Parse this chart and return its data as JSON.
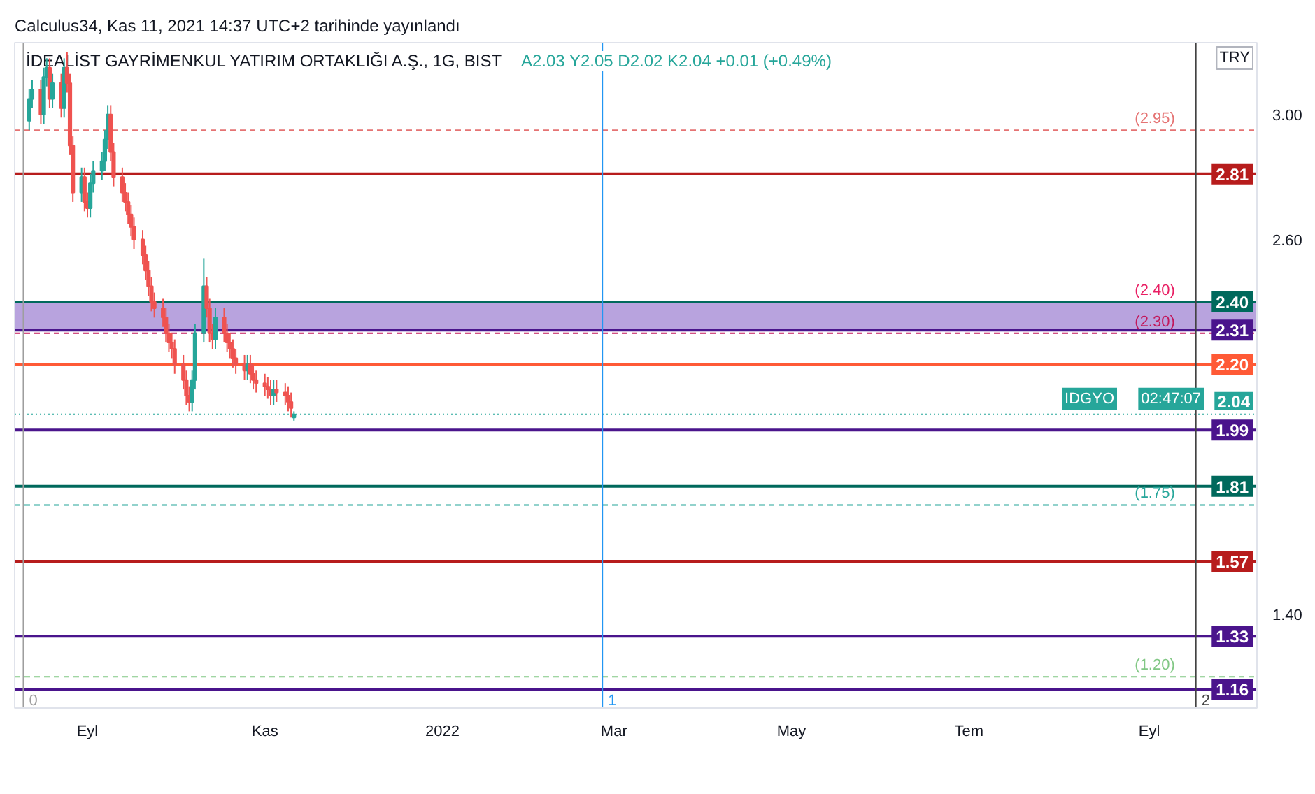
{
  "chart_data": {
    "type": "candlestick",
    "title": "İDEALİST GAYRİMENKUL YATIRIM ORTAKLIĞI A.Ş., 1G, BIST",
    "subtitle": "A2.03  Y2.05  D2.02  K2.04  +0.01 (+0.49%)",
    "annotations": [
      "Calculus34, Kas 11, 2021 14:37 UTC+2 tarihinde yayınlandı",
      "TRY",
      "02:47:07",
      "2.04"
    ],
    "x": [
      "2021-08-12",
      "2021-08-13",
      "2021-08-16",
      "2021-08-17",
      "2021-08-18",
      "2021-08-19",
      "2021-08-20",
      "2021-08-23",
      "2021-08-24",
      "2021-08-25",
      "2021-08-26",
      "2021-08-27",
      "2021-08-30",
      "2021-08-31",
      "2021-09-01",
      "2021-09-02",
      "2021-09-03",
      "2021-09-06",
      "2021-09-07",
      "2021-09-08",
      "2021-09-09",
      "2021-09-10",
      "2021-09-13",
      "2021-09-14",
      "2021-09-15",
      "2021-09-16",
      "2021-09-17",
      "2021-09-20",
      "2021-09-21",
      "2021-09-22",
      "2021-09-23",
      "2021-09-24",
      "2021-09-27",
      "2021-09-28",
      "2021-09-29",
      "2021-09-30",
      "2021-10-01",
      "2021-10-04",
      "2021-10-05",
      "2021-10-06",
      "2021-10-07",
      "2021-10-08",
      "2021-10-11",
      "2021-10-12",
      "2021-10-13",
      "2021-10-14",
      "2021-10-15",
      "2021-10-18",
      "2021-10-19",
      "2021-10-20",
      "2021-10-21",
      "2021-10-22",
      "2021-10-25",
      "2021-10-26",
      "2021-10-27",
      "2021-10-28",
      "2021-10-29",
      "2021-11-01",
      "2021-11-02",
      "2021-11-03",
      "2021-11-04",
      "2021-11-05",
      "2021-11-08",
      "2021-11-09",
      "2021-11-10",
      "2021-11-11"
    ],
    "ohlc": [
      [
        2.98,
        3.08,
        2.95,
        3.05
      ],
      [
        3.05,
        3.11,
        3.02,
        3.08
      ],
      [
        3.08,
        3.11,
        2.97,
        3.0
      ],
      [
        3.0,
        3.15,
        2.97,
        3.12
      ],
      [
        3.12,
        3.18,
        3.09,
        3.15
      ],
      [
        3.15,
        3.18,
        3.02,
        3.05
      ],
      [
        3.05,
        3.13,
        3.02,
        3.1
      ],
      [
        3.1,
        3.13,
        2.99,
        3.02
      ],
      [
        3.02,
        3.18,
        2.99,
        3.15
      ],
      [
        3.15,
        3.2,
        3.07,
        3.1
      ],
      [
        3.1,
        3.13,
        2.87,
        2.9
      ],
      [
        2.9,
        2.93,
        2.72,
        2.75
      ],
      [
        2.75,
        2.83,
        2.72,
        2.8
      ],
      [
        2.8,
        2.83,
        2.69,
        2.72
      ],
      [
        2.72,
        2.75,
        2.67,
        2.7
      ],
      [
        2.7,
        2.81,
        2.67,
        2.78
      ],
      [
        2.78,
        2.85,
        2.75,
        2.82
      ],
      [
        2.82,
        2.88,
        2.79,
        2.85
      ],
      [
        2.85,
        2.95,
        2.82,
        2.92
      ],
      [
        2.92,
        3.03,
        2.89,
        3.0
      ],
      [
        3.0,
        3.03,
        2.85,
        2.88
      ],
      [
        2.88,
        2.91,
        2.77,
        2.8
      ],
      [
        2.8,
        2.83,
        2.72,
        2.75
      ],
      [
        2.75,
        2.78,
        2.69,
        2.72
      ],
      [
        2.72,
        2.75,
        2.65,
        2.68
      ],
      [
        2.68,
        2.71,
        2.61,
        2.64
      ],
      [
        2.64,
        2.67,
        2.57,
        2.6
      ],
      [
        2.6,
        2.63,
        2.52,
        2.55
      ],
      [
        2.55,
        2.58,
        2.47,
        2.5
      ],
      [
        2.5,
        2.53,
        2.42,
        2.45
      ],
      [
        2.45,
        2.48,
        2.37,
        2.4
      ],
      [
        2.4,
        2.43,
        2.35,
        2.38
      ],
      [
        2.38,
        2.41,
        2.32,
        2.35
      ],
      [
        2.35,
        2.38,
        2.27,
        2.3
      ],
      [
        2.3,
        2.33,
        2.24,
        2.27
      ],
      [
        2.27,
        2.3,
        2.22,
        2.25
      ],
      [
        2.25,
        2.28,
        2.17,
        2.2
      ],
      [
        2.2,
        2.23,
        2.12,
        2.15
      ],
      [
        2.15,
        2.18,
        2.07,
        2.1
      ],
      [
        2.1,
        2.13,
        2.05,
        2.08
      ],
      [
        2.08,
        2.18,
        2.05,
        2.15
      ],
      [
        2.15,
        2.33,
        2.12,
        2.3
      ],
      [
        2.3,
        2.54,
        2.27,
        2.45
      ],
      [
        2.45,
        2.48,
        2.35,
        2.38
      ],
      [
        2.38,
        2.41,
        2.27,
        2.3
      ],
      [
        2.3,
        2.33,
        2.25,
        2.28
      ],
      [
        2.28,
        2.38,
        2.25,
        2.35
      ],
      [
        2.35,
        2.38,
        2.27,
        2.3
      ],
      [
        2.3,
        2.33,
        2.24,
        2.27
      ],
      [
        2.27,
        2.3,
        2.22,
        2.25
      ],
      [
        2.25,
        2.28,
        2.19,
        2.22
      ],
      [
        2.22,
        2.25,
        2.17,
        2.2
      ],
      [
        2.2,
        2.23,
        2.15,
        2.18
      ],
      [
        2.18,
        2.23,
        2.15,
        2.2
      ],
      [
        2.2,
        2.23,
        2.14,
        2.17
      ],
      [
        2.17,
        2.2,
        2.12,
        2.15
      ],
      [
        2.15,
        2.18,
        2.11,
        2.14
      ],
      [
        2.14,
        2.17,
        2.1,
        2.13
      ],
      [
        2.13,
        2.16,
        2.09,
        2.12
      ],
      [
        2.12,
        2.15,
        2.07,
        2.1
      ],
      [
        2.1,
        2.15,
        2.07,
        2.12
      ],
      [
        2.12,
        2.15,
        2.08,
        2.11
      ],
      [
        2.11,
        2.14,
        2.07,
        2.1
      ],
      [
        2.1,
        2.13,
        2.05,
        2.08
      ],
      [
        2.08,
        2.11,
        2.03,
        2.06
      ],
      [
        2.03,
        2.05,
        2.02,
        2.04
      ]
    ],
    "xlim": [
      "2021-08-07",
      "2022-10-08"
    ],
    "ylim": [
      1.1,
      3.23
    ],
    "xticks": [
      {
        "value": "2021-09-01",
        "label": "Eyl"
      },
      {
        "value": "2021-11-01",
        "label": "Kas"
      },
      {
        "value": "2022-01-01",
        "label": "2022"
      },
      {
        "value": "2022-03-01",
        "label": "Mar"
      },
      {
        "value": "2022-05-01",
        "label": "May"
      },
      {
        "value": "2022-07-01",
        "label": "Tem"
      },
      {
        "value": "2022-09-01",
        "label": "Eyl"
      }
    ],
    "yticks": [
      {
        "value": 1.4,
        "label": "1.40"
      },
      {
        "value": 2.6,
        "label": "2.60"
      },
      {
        "value": 3.0,
        "label": "3.00"
      }
    ],
    "grid": false,
    "ref_lines": [
      {
        "axis": "y",
        "value": 2.81,
        "label": "2.81",
        "color": "#b71c1c",
        "line_style": "solid"
      },
      {
        "axis": "y",
        "value": 2.4,
        "label": "2.40",
        "color": "#00695c",
        "line_style": "solid"
      },
      {
        "axis": "y",
        "value": 2.31,
        "label": "2.31",
        "color": "#4a148c",
        "line_style": "solid"
      },
      {
        "axis": "y",
        "value": 2.2,
        "label": "2.20",
        "color": "#ff5a36",
        "line_style": "solid"
      },
      {
        "axis": "y",
        "value": 1.99,
        "label": "1.99",
        "color": "#4a148c",
        "line_style": "solid"
      },
      {
        "axis": "y",
        "value": 1.81,
        "label": "1.81",
        "color": "#00695c",
        "line_style": "solid"
      },
      {
        "axis": "y",
        "value": 1.57,
        "label": "1.57",
        "color": "#b71c1c",
        "line_style": "solid"
      },
      {
        "axis": "y",
        "value": 1.33,
        "label": "1.33",
        "color": "#4a148c",
        "line_style": "solid"
      },
      {
        "axis": "y",
        "value": 1.16,
        "label": "1.16",
        "color": "#4a148c",
        "line_style": "solid"
      },
      {
        "axis": "y",
        "value": 2.95,
        "label": "(2.95)",
        "color": "#e57373",
        "line_style": "dashed"
      },
      {
        "axis": "y",
        "value": 2.3,
        "label": "(2.30)",
        "color": "#c2185b",
        "line_style": "dashed"
      },
      {
        "axis": "y",
        "value": 1.75,
        "label": "(1.75)",
        "color": "#26a69a",
        "line_style": "dashed"
      },
      {
        "axis": "y",
        "value": 1.2,
        "label": "(1.20)",
        "color": "#81c784",
        "line_style": "dashed"
      },
      {
        "axis": "y",
        "value": 2.04,
        "label": "IDGYO",
        "color": "#26a69a",
        "line_style": "dotted"
      },
      {
        "axis": "x",
        "value": "2021-08-10",
        "label": "0",
        "color": "#9e9e9e",
        "line_style": "solid"
      },
      {
        "axis": "x",
        "value": "2022-02-25",
        "label": "1",
        "color": "#2196f3",
        "line_style": "solid"
      },
      {
        "axis": "x",
        "value": "2022-09-17",
        "label": "2",
        "color": "#424242",
        "line_style": "solid"
      }
    ],
    "bands": [
      {
        "axis": "y",
        "from": 2.31,
        "to": 2.4,
        "label": "(2.40)",
        "color": "#7e57c2"
      }
    ]
  }
}
